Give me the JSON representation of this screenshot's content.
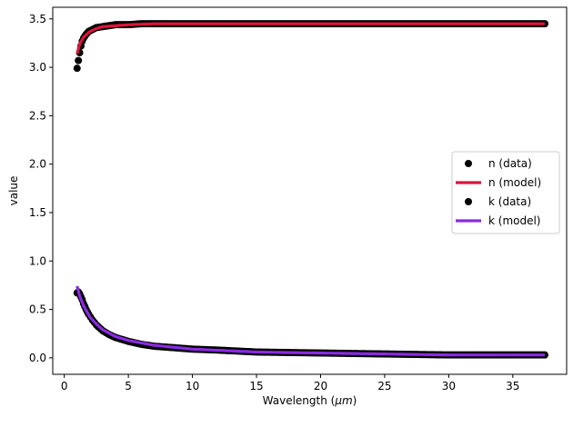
{
  "chart_data": {
    "type": "scatter",
    "xlabel_text": "Wavelength (",
    "xlabel_unit": "μm",
    "xlabel_close": ")",
    "ylabel": "value",
    "xlim": [
      -0.9,
      39.2
    ],
    "ylim": [
      -0.17,
      3.62
    ],
    "x_ticks": [
      0,
      5,
      10,
      15,
      20,
      25,
      30,
      35
    ],
    "y_ticks": [
      0.0,
      0.5,
      1.0,
      1.5,
      2.0,
      2.5,
      3.0,
      3.5
    ],
    "x_tick_labels": [
      "0",
      "5",
      "10",
      "15",
      "20",
      "25",
      "30",
      "35"
    ],
    "y_tick_labels": [
      "0.0",
      "0.5",
      "1.0",
      "1.5",
      "2.0",
      "2.5",
      "3.0",
      "3.5"
    ],
    "legend_position": "right",
    "colors": {
      "data": "#000000",
      "n_model": "#dc143c",
      "k_model": "#8a2be2"
    },
    "series": [
      {
        "name": "n (data)",
        "kind": "points",
        "color": "#000000",
        "x": [
          1.0,
          1.1,
          1.2,
          1.3,
          1.4,
          1.5,
          1.7,
          1.9,
          2.2,
          2.5,
          3.0,
          3.5,
          4.0,
          5.0,
          6.0,
          7.0,
          8.0,
          10.0,
          12.0,
          15.0,
          20.0,
          25.0,
          30.0,
          37.5
        ],
        "y": [
          2.99,
          3.07,
          3.15,
          3.22,
          3.27,
          3.3,
          3.34,
          3.37,
          3.39,
          3.41,
          3.42,
          3.43,
          3.44,
          3.44,
          3.45,
          3.45,
          3.45,
          3.45,
          3.45,
          3.45,
          3.45,
          3.45,
          3.45,
          3.45
        ]
      },
      {
        "name": "n (model)",
        "kind": "line",
        "color": "#dc143c",
        "x": [
          1.0,
          1.2,
          1.5,
          2.0,
          2.5,
          3.0,
          4.0,
          5.0,
          7.0,
          10.0,
          15.0,
          20.0,
          30.0,
          37.5
        ],
        "y": [
          3.14,
          3.24,
          3.31,
          3.37,
          3.4,
          3.42,
          3.43,
          3.44,
          3.45,
          3.45,
          3.45,
          3.45,
          3.45,
          3.45
        ]
      },
      {
        "name": "k (data)",
        "kind": "points",
        "color": "#000000",
        "x": [
          1.0,
          1.1,
          1.2,
          1.3,
          1.4,
          1.5,
          1.7,
          1.9,
          2.2,
          2.5,
          3.0,
          3.5,
          4.0,
          5.0,
          6.0,
          7.0,
          8.0,
          10.0,
          12.0,
          15.0,
          20.0,
          25.0,
          30.0,
          37.5
        ],
        "y": [
          0.67,
          0.68,
          0.66,
          0.63,
          0.6,
          0.56,
          0.5,
          0.45,
          0.39,
          0.34,
          0.28,
          0.24,
          0.21,
          0.17,
          0.14,
          0.12,
          0.11,
          0.09,
          0.08,
          0.06,
          0.05,
          0.04,
          0.03,
          0.03
        ]
      },
      {
        "name": "k (model)",
        "kind": "line",
        "color": "#8a2be2",
        "x": [
          1.0,
          1.2,
          1.5,
          2.0,
          2.5,
          3.0,
          4.0,
          5.0,
          7.0,
          10.0,
          15.0,
          20.0,
          30.0,
          37.5
        ],
        "y": [
          0.74,
          0.64,
          0.54,
          0.42,
          0.35,
          0.29,
          0.22,
          0.18,
          0.13,
          0.09,
          0.06,
          0.05,
          0.03,
          0.03
        ]
      }
    ]
  }
}
